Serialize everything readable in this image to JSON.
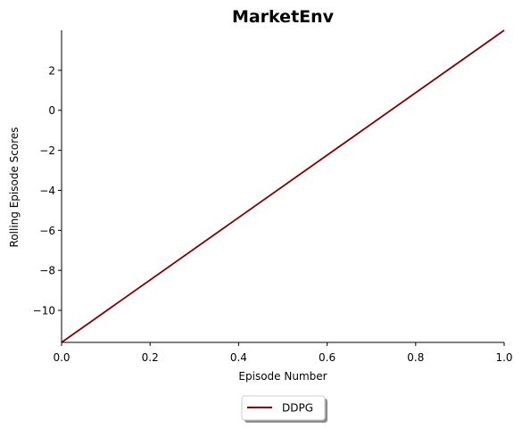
{
  "chart_data": {
    "type": "line",
    "title": "MarketEnv",
    "xlabel": "Episode Number",
    "ylabel": "Rolling Episode Scores",
    "xlim": [
      0.0,
      1.0
    ],
    "ylim": [
      -11.6,
      4.0
    ],
    "x_ticks": [
      0.0,
      0.2,
      0.4,
      0.6,
      0.8,
      1.0
    ],
    "x_tick_labels": [
      "0.0",
      "0.2",
      "0.4",
      "0.6",
      "0.8",
      "1.0"
    ],
    "y_ticks": [
      -10,
      -8,
      -6,
      -4,
      -2,
      0,
      2
    ],
    "y_tick_labels": [
      "−10",
      "−8",
      "−6",
      "−4",
      "−2",
      "0",
      "2"
    ],
    "grid": false,
    "legend_position": "bottom-center",
    "series": [
      {
        "name": "DDPG",
        "color": "#800000",
        "x": [
          0.0,
          1.0
        ],
        "y": [
          -11.6,
          4.0
        ]
      }
    ]
  }
}
